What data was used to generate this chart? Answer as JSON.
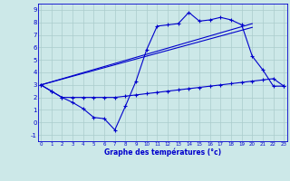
{
  "xlabel": "Graphe des températures (°c)",
  "bg_color": "#cce8e8",
  "line_color": "#0000cc",
  "grid_color": "#aacccc",
  "x_ticks": [
    0,
    1,
    2,
    3,
    4,
    5,
    6,
    7,
    8,
    9,
    10,
    11,
    12,
    13,
    14,
    15,
    16,
    17,
    18,
    19,
    20,
    21,
    22,
    23
  ],
  "y_ticks": [
    -1,
    0,
    1,
    2,
    3,
    4,
    5,
    6,
    7,
    8,
    9
  ],
  "xlim": [
    -0.3,
    23.3
  ],
  "ylim": [
    -1.5,
    9.5
  ],
  "line1_x": [
    0,
    1,
    2,
    3,
    4,
    5,
    6,
    7,
    8,
    9,
    10,
    11,
    12,
    13,
    14,
    15,
    16,
    17,
    18,
    19,
    20,
    21,
    22,
    23
  ],
  "line1_y": [
    3.0,
    2.5,
    2.0,
    1.6,
    1.1,
    0.4,
    0.3,
    -0.6,
    1.3,
    3.3,
    5.8,
    7.7,
    7.8,
    7.9,
    8.8,
    8.1,
    8.2,
    8.4,
    8.2,
    7.8,
    5.3,
    4.2,
    2.9,
    2.9
  ],
  "line2_x": [
    0,
    1,
    2,
    3,
    4,
    5,
    6,
    7,
    8,
    9,
    10,
    11,
    12,
    13,
    14,
    15,
    16,
    17,
    18,
    19,
    20,
    21,
    22,
    23
  ],
  "line2_y": [
    3.0,
    2.5,
    2.0,
    2.0,
    2.0,
    2.0,
    2.0,
    2.0,
    2.1,
    2.2,
    2.3,
    2.4,
    2.5,
    2.6,
    2.7,
    2.8,
    2.9,
    3.0,
    3.1,
    3.2,
    3.3,
    3.4,
    3.5,
    2.9
  ],
  "line3_x": [
    0,
    20
  ],
  "line3_y": [
    3.0,
    7.9
  ],
  "line4_x": [
    0,
    20
  ],
  "line4_y": [
    3.0,
    7.6
  ]
}
